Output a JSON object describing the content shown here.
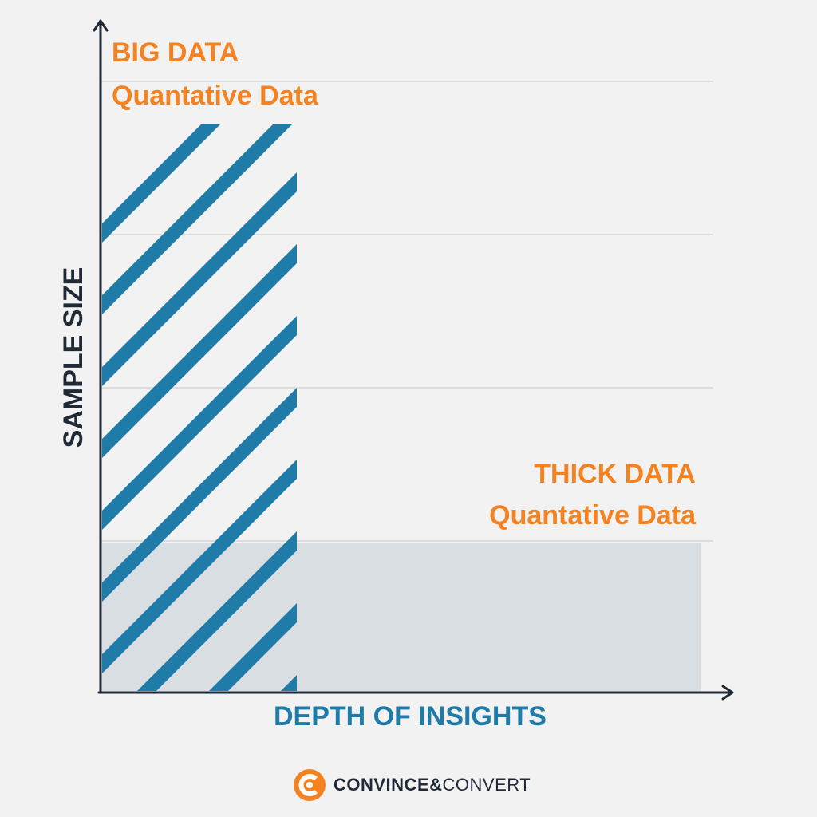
{
  "colors": {
    "blue": "#1f7ba8",
    "dark": "#1f2a36",
    "orange": "#f58220",
    "thick_fill": "#d9dee2",
    "grid": "#d4d4d4"
  },
  "big_data": {
    "title": "BIG DATA",
    "subtitle": "Quantative Data"
  },
  "thick_data": {
    "title": "THICK DATA",
    "subtitle": "Quantative Data"
  },
  "axes": {
    "x_label": "DEPTH OF INSIGHTS",
    "y_label": "SAMPLE SIZE"
  },
  "logo": {
    "icon": "convince-and-convert-c-icon",
    "text_strong": "CONVINCE&",
    "text_light": "CONVERT"
  }
}
